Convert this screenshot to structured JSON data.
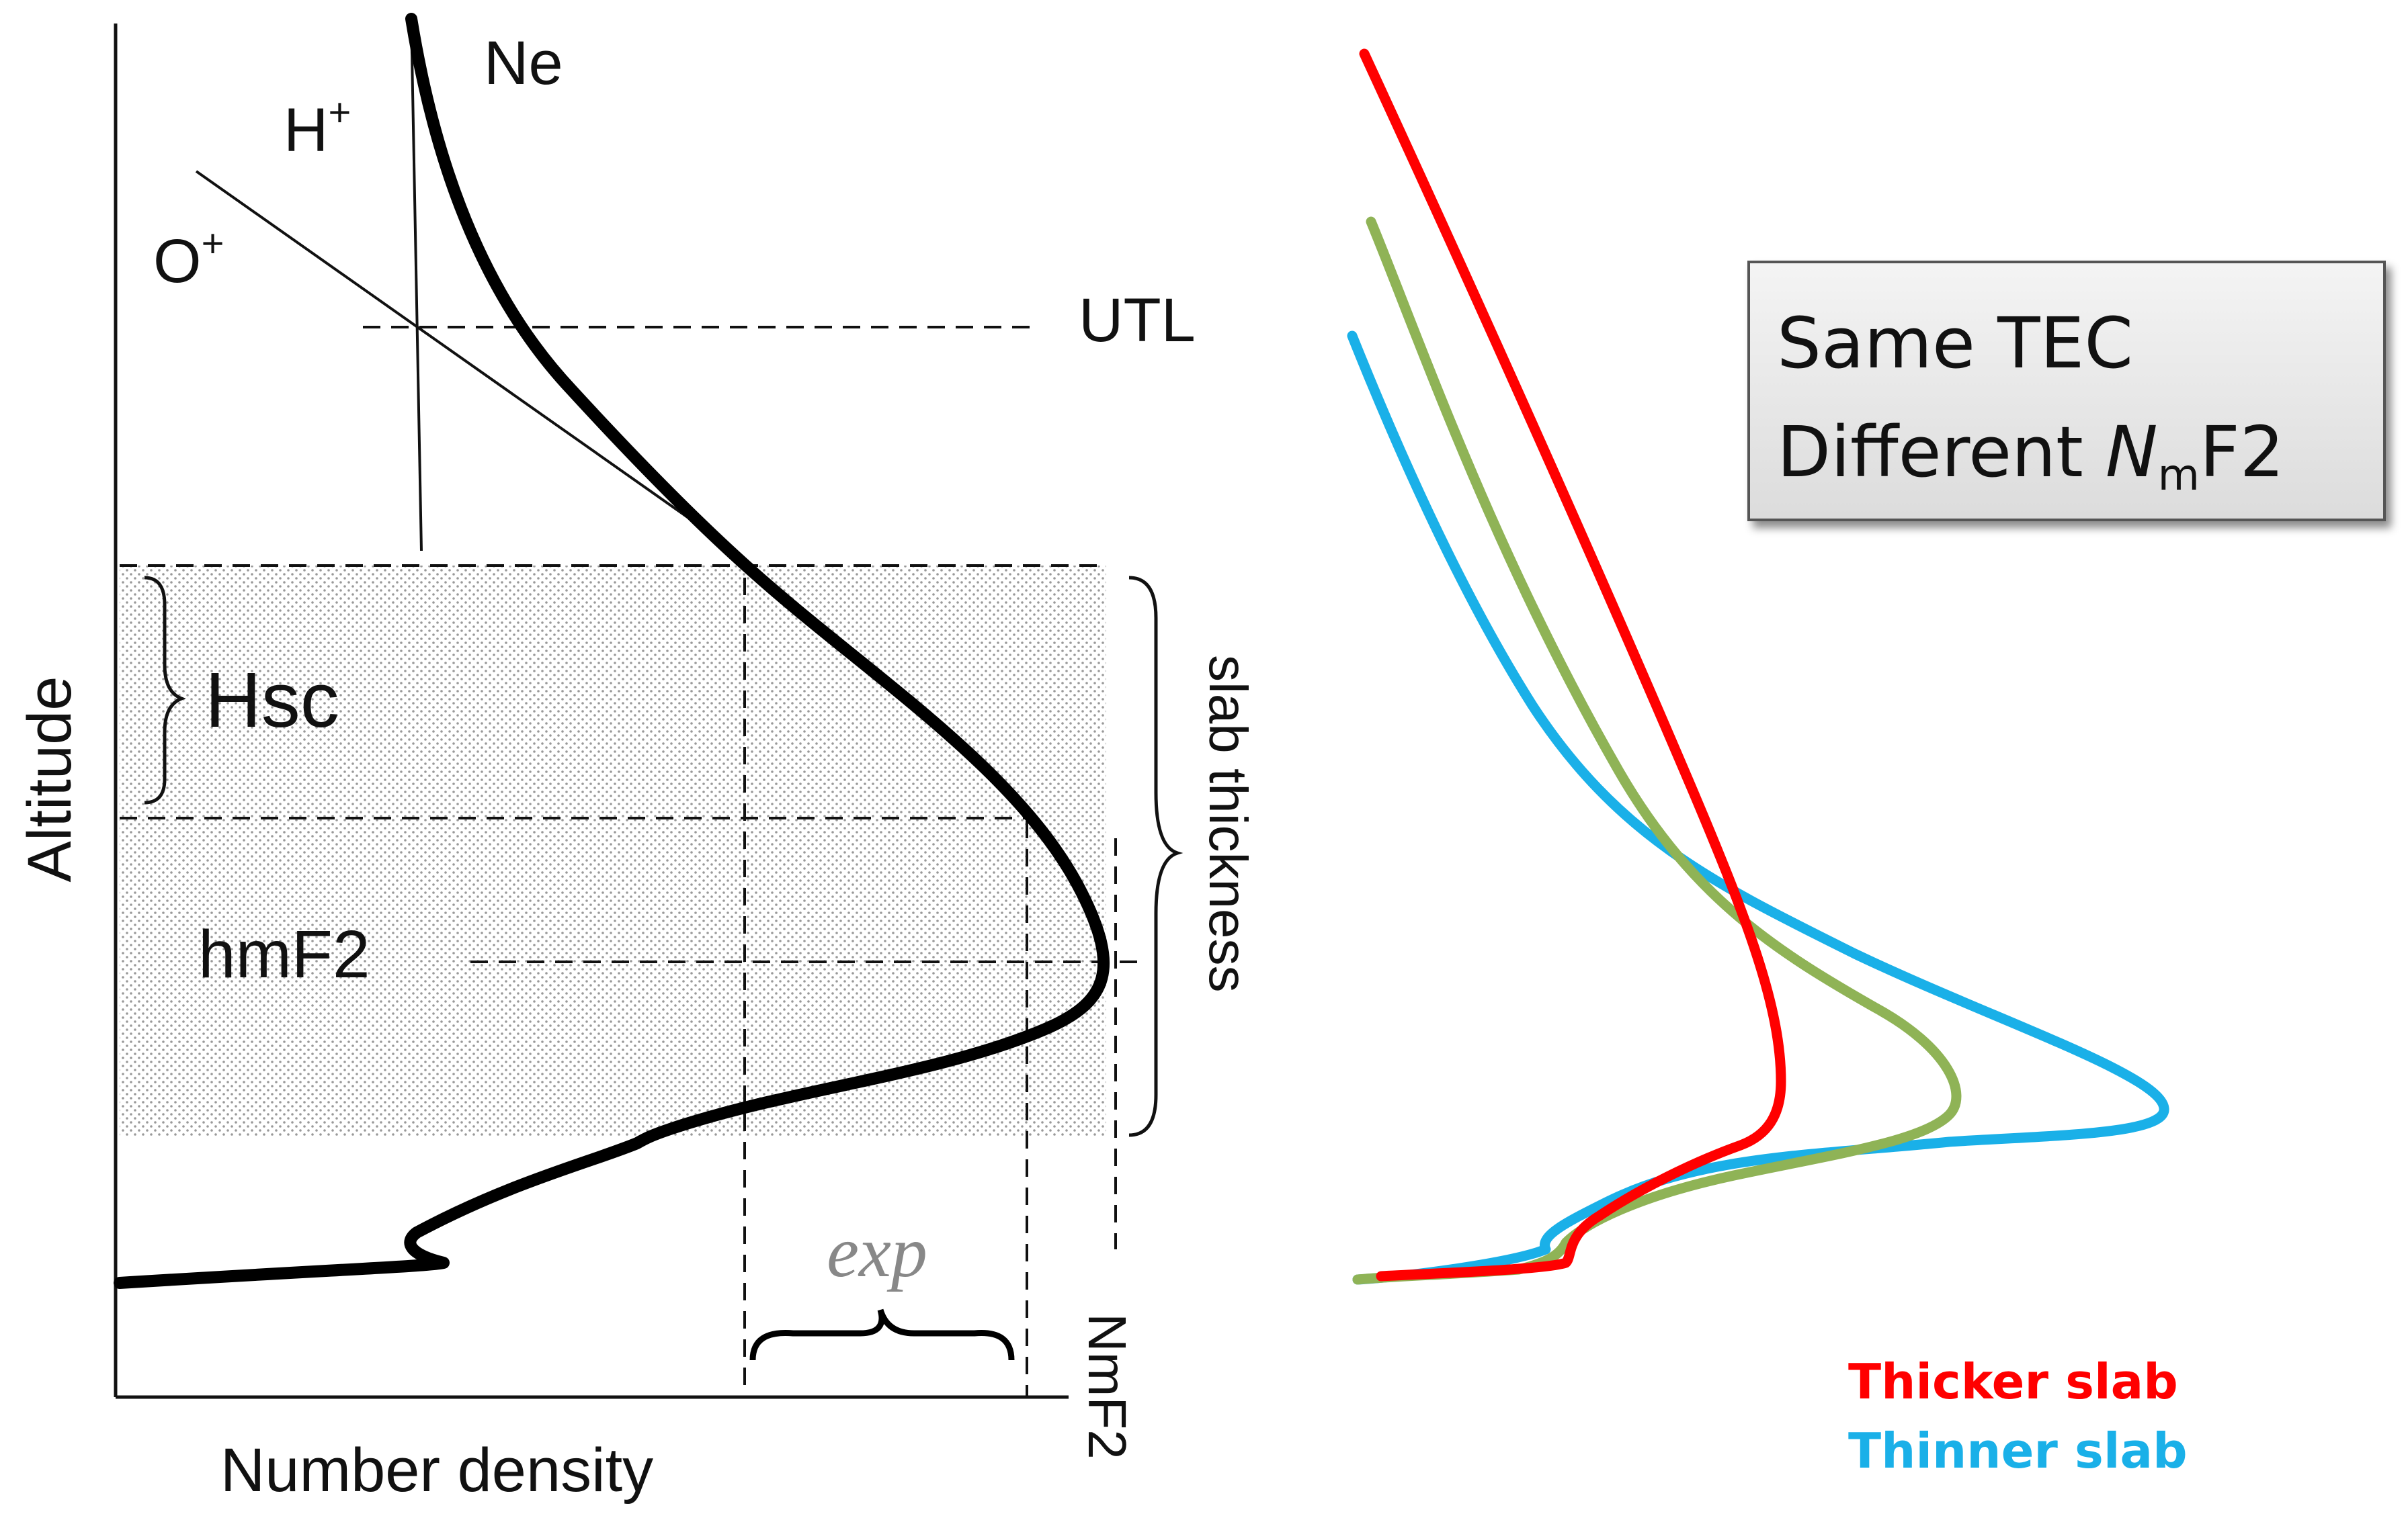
{
  "left_panel": {
    "axis_y_label": "Altitude",
    "axis_x_label": "Number density",
    "curve_ne_label": "Ne",
    "hplus_label": "H",
    "hplus_sup": "+",
    "oplus_label": "O",
    "oplus_sup": "+",
    "utl_label": "UTL",
    "hsc_label": "Hsc",
    "hmf2_label": "hmF2",
    "slab_label": "slab  thickness",
    "exp_label": "exp",
    "nmf2_label": "NmF2"
  },
  "right_panel": {
    "box_line1": "Same TEC",
    "box_line2_prefix": "Different ",
    "box_line2_n": "N",
    "box_line2_sub": "m",
    "box_line2_suffix": "F2",
    "legend_thicker": "Thicker slab",
    "legend_thinner": "Thinner slab",
    "colors": {
      "thicker": "#ff0000",
      "middle": "#8fb356",
      "thinner": "#1ab0e8"
    }
  }
}
